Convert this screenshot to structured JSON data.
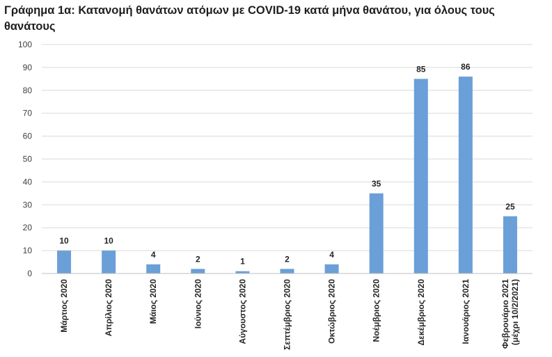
{
  "chart_data": {
    "type": "bar",
    "title_lines": [
      "Γράφημα 1α: Κατανομή θανάτων ατόμων με COVID-19 κατά μήνα θανάτου, για όλους τους",
      "θανάτους"
    ],
    "categories": [
      [
        "Μάρτιος 2020"
      ],
      [
        "Απρίλιος 2020"
      ],
      [
        "Μάιος 2020"
      ],
      [
        "Ιούνιος 2020"
      ],
      [
        "Αύγουστος 2020"
      ],
      [
        "Σεπτέμβριος 2020"
      ],
      [
        "Οκτώβριος 2020"
      ],
      [
        "Νοέμβριος 2020"
      ],
      [
        "Δεκέμβριος 2020"
      ],
      [
        "Ιανουάριος 2021"
      ],
      [
        "Φεβρουάριο 2021",
        "(μέχρι 10/2/2021)"
      ]
    ],
    "values": [
      10,
      10,
      4,
      2,
      1,
      2,
      4,
      35,
      85,
      86,
      25
    ],
    "ylim": [
      0,
      100
    ],
    "yticks": [
      0,
      10,
      20,
      30,
      40,
      50,
      60,
      70,
      80,
      90,
      100
    ],
    "grid": true,
    "bar_color": "#6a9fd8",
    "grid_color": "#d9d9d9",
    "axis_color": "#bfbfbf"
  }
}
